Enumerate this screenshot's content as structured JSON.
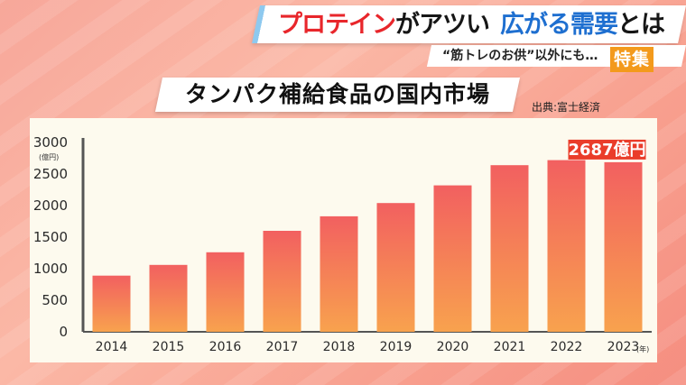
{
  "header": {
    "part_red": "プロテイン",
    "part_black": "がアツい",
    "part_blue": "広がる需要",
    "part_black2": "とは"
  },
  "subheader": "“筋トレのお供”以外にも…",
  "badge": "特集",
  "source": "出典:富士経済",
  "chart_data": {
    "type": "bar",
    "title": "タンパク補給食品の国内市場",
    "xlabel_unit": "(年)",
    "ylabel_unit": "(億円)",
    "categories": [
      "2014",
      "2015",
      "2016",
      "2017",
      "2018",
      "2019",
      "2020",
      "2021",
      "2022",
      "2023"
    ],
    "values": [
      890,
      1060,
      1260,
      1600,
      1830,
      2040,
      2320,
      2640,
      2720,
      2687
    ],
    "ylim": [
      0,
      3000
    ],
    "yticks": [
      0,
      500,
      1000,
      1500,
      2000,
      2500,
      3000
    ],
    "annotation": {
      "category": "2023",
      "text": "2687億円"
    },
    "grid": false,
    "colors": {
      "bar_top": "#f26060",
      "bar_bottom": "#f8a24e",
      "annotation_bg": "#ea3d2a"
    }
  }
}
